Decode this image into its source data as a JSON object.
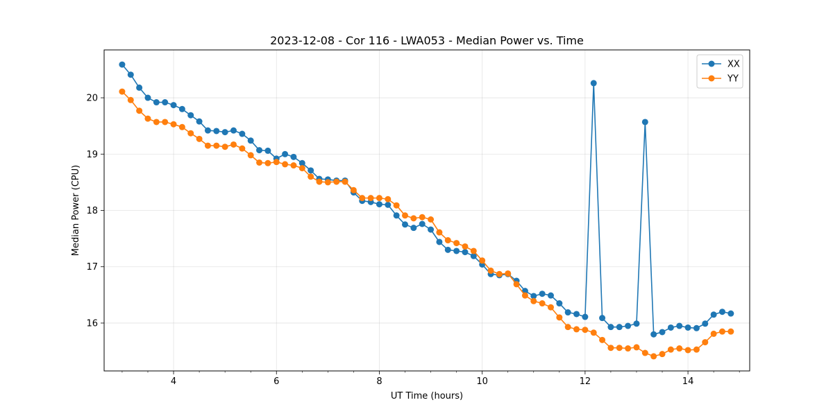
{
  "chart_data": {
    "type": "line",
    "title": "2023-12-08 - Cor 116 - LWA053 - Median Power vs. Time",
    "xlabel": "UT Time (hours)",
    "ylabel": "Median Power (CPU)",
    "xlim": [
      2.65,
      15.2
    ],
    "ylim": [
      15.15,
      20.85
    ],
    "xticks": [
      4,
      6,
      8,
      10,
      12,
      14
    ],
    "yticks": [
      16,
      17,
      18,
      19,
      20
    ],
    "grid": true,
    "legend_position": "top-right",
    "x": [
      3.0,
      3.1667,
      3.3333,
      3.5,
      3.6667,
      3.8333,
      4.0,
      4.1667,
      4.3333,
      4.5,
      4.6667,
      4.8333,
      5.0,
      5.1667,
      5.3333,
      5.5,
      5.6667,
      5.8333,
      6.0,
      6.1667,
      6.3333,
      6.5,
      6.6667,
      6.8333,
      7.0,
      7.1667,
      7.3333,
      7.5,
      7.6667,
      7.8333,
      8.0,
      8.1667,
      8.3333,
      8.5,
      8.6667,
      8.8333,
      9.0,
      9.1667,
      9.3333,
      9.5,
      9.6667,
      9.8333,
      10.0,
      10.1667,
      10.3333,
      10.5,
      10.6667,
      10.8333,
      11.0,
      11.1667,
      11.3333,
      11.5,
      11.6667,
      11.8333,
      12.0,
      12.1667,
      12.3333,
      12.5,
      12.6667,
      12.8333,
      13.0,
      13.1667,
      13.3333,
      13.5,
      13.6667,
      13.8333,
      14.0,
      14.1667,
      14.3333,
      14.5,
      14.6667,
      14.8333
    ],
    "series": [
      {
        "name": "XX",
        "color": "#1f77b4",
        "values": [
          20.59,
          20.41,
          20.18,
          20.0,
          19.92,
          19.92,
          19.87,
          19.8,
          19.69,
          19.58,
          19.42,
          19.41,
          19.39,
          19.42,
          19.36,
          19.24,
          19.07,
          19.06,
          18.92,
          19.0,
          18.95,
          18.84,
          18.71,
          18.56,
          18.55,
          18.53,
          18.53,
          18.32,
          18.17,
          18.15,
          18.11,
          18.1,
          17.91,
          17.75,
          17.69,
          17.76,
          17.66,
          17.44,
          17.3,
          17.28,
          17.26,
          17.19,
          17.04,
          16.87,
          16.85,
          16.87,
          16.75,
          16.57,
          16.48,
          16.52,
          16.49,
          16.35,
          16.19,
          16.16,
          16.11,
          20.26,
          16.09,
          15.93,
          15.93,
          15.95,
          15.99,
          19.57,
          15.8,
          15.84,
          15.92,
          15.95,
          15.92,
          15.91,
          15.99,
          16.15,
          16.2,
          16.17
        ]
      },
      {
        "name": "YY",
        "color": "#ff7f0e",
        "values": [
          20.11,
          19.96,
          19.77,
          19.63,
          19.57,
          19.57,
          19.53,
          19.48,
          19.37,
          19.27,
          19.15,
          19.15,
          19.13,
          19.17,
          19.1,
          18.98,
          18.85,
          18.84,
          18.86,
          18.82,
          18.8,
          18.75,
          18.6,
          18.51,
          18.5,
          18.51,
          18.51,
          18.36,
          18.22,
          18.22,
          18.22,
          18.2,
          18.09,
          17.91,
          17.86,
          17.88,
          17.84,
          17.61,
          17.47,
          17.42,
          17.36,
          17.28,
          17.11,
          16.93,
          16.87,
          16.88,
          16.69,
          16.49,
          16.39,
          16.35,
          16.28,
          16.1,
          15.93,
          15.89,
          15.88,
          15.83,
          15.7,
          15.56,
          15.56,
          15.55,
          15.57,
          15.47,
          15.41,
          15.45,
          15.53,
          15.55,
          15.52,
          15.53,
          15.66,
          15.81,
          15.85,
          15.85
        ]
      }
    ]
  }
}
